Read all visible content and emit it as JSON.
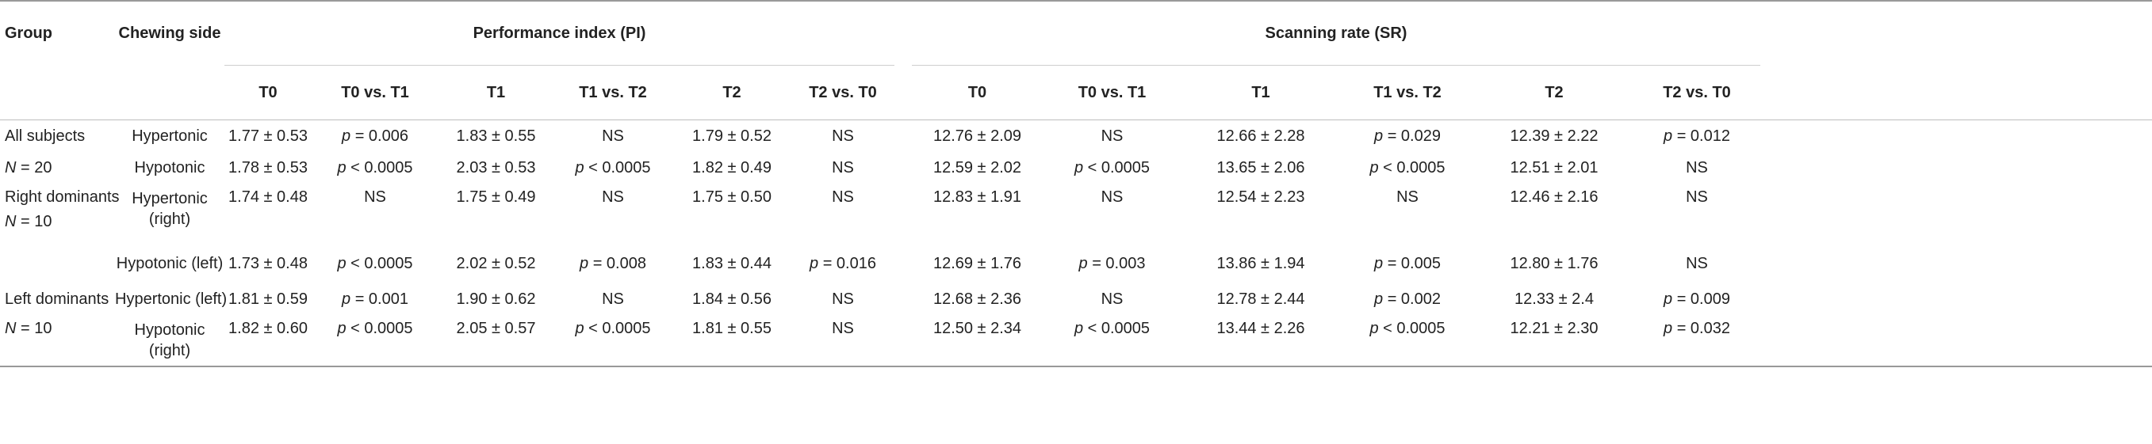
{
  "headers": {
    "group": "Group",
    "chewing_side": "Chewing side",
    "pi_group": "Performance index (PI)",
    "sr_group": "Scanning rate (SR)",
    "sub": [
      "T0",
      "T0 vs. T1",
      "T1",
      "T1 vs. T2",
      "T2",
      "T2 vs. T0",
      "T0",
      "T0 vs. T1",
      "T1",
      "T1 vs. T2",
      "T2",
      "T2 vs. T0"
    ]
  },
  "rows": [
    {
      "group": "All subjects",
      "side": "Hypertonic",
      "cells": [
        "1.77 ± 0.53",
        "p = 0.006",
        "1.83 ± 0.55",
        "NS",
        "1.79 ± 0.52",
        "NS",
        "12.76 ± 2.09",
        "NS",
        "12.66 ± 2.28",
        "p = 0.029",
        "12.39 ± 2.22",
        "p = 0.012"
      ]
    },
    {
      "group": "N = 20",
      "side": "Hypotonic",
      "cells": [
        "1.78 ± 0.53",
        "p < 0.0005",
        "2.03 ± 0.53",
        "p < 0.0005",
        "1.82 ± 0.49",
        "NS",
        "12.59 ± 2.02",
        "p < 0.0005",
        "13.65 ± 2.06",
        "p < 0.0005",
        "12.51 ± 2.01",
        "NS"
      ]
    },
    {
      "group": "Right dominants",
      "group2": "N = 10",
      "side": "Hypertonic",
      "side2": "(right)",
      "cells": [
        "1.74 ± 0.48",
        "NS",
        "1.75 ± 0.49",
        "NS",
        "1.75 ± 0.50",
        "NS",
        "12.83 ± 1.91",
        "NS",
        "12.54 ± 2.23",
        "NS",
        "12.46 ± 2.16",
        "NS"
      ]
    },
    {
      "group": "",
      "side": "Hypotonic (left)",
      "cells": [
        "1.73 ± 0.48",
        "p < 0.0005",
        "2.02 ± 0.52",
        "p = 0.008",
        "1.83 ± 0.44",
        "p = 0.016",
        "12.69 ± 1.76",
        "p = 0.003",
        "13.86 ± 1.94",
        "p = 0.005",
        "12.80 ± 1.76",
        "NS"
      ]
    },
    {
      "group": "Left dominants",
      "side": "Hypertonic (left)",
      "cells": [
        "1.81 ± 0.59",
        "p = 0.001",
        "1.90 ± 0.62",
        "NS",
        "1.84 ± 0.56",
        "NS",
        "12.68 ± 2.36",
        "NS",
        "12.78 ± 2.44",
        "p = 0.002",
        "12.33 ± 2.4",
        "p = 0.009"
      ]
    },
    {
      "group": "N = 10",
      "side": "Hypotonic",
      "side2": "(right)",
      "cells": [
        "1.82 ± 0.60",
        "p < 0.0005",
        "2.05 ± 0.57",
        "p < 0.0005",
        "1.81 ± 0.55",
        "NS",
        "12.50 ± 2.34",
        "p < 0.0005",
        "13.44 ± 2.26",
        "p < 0.0005",
        "12.21 ± 2.30",
        "p = 0.032"
      ]
    }
  ]
}
